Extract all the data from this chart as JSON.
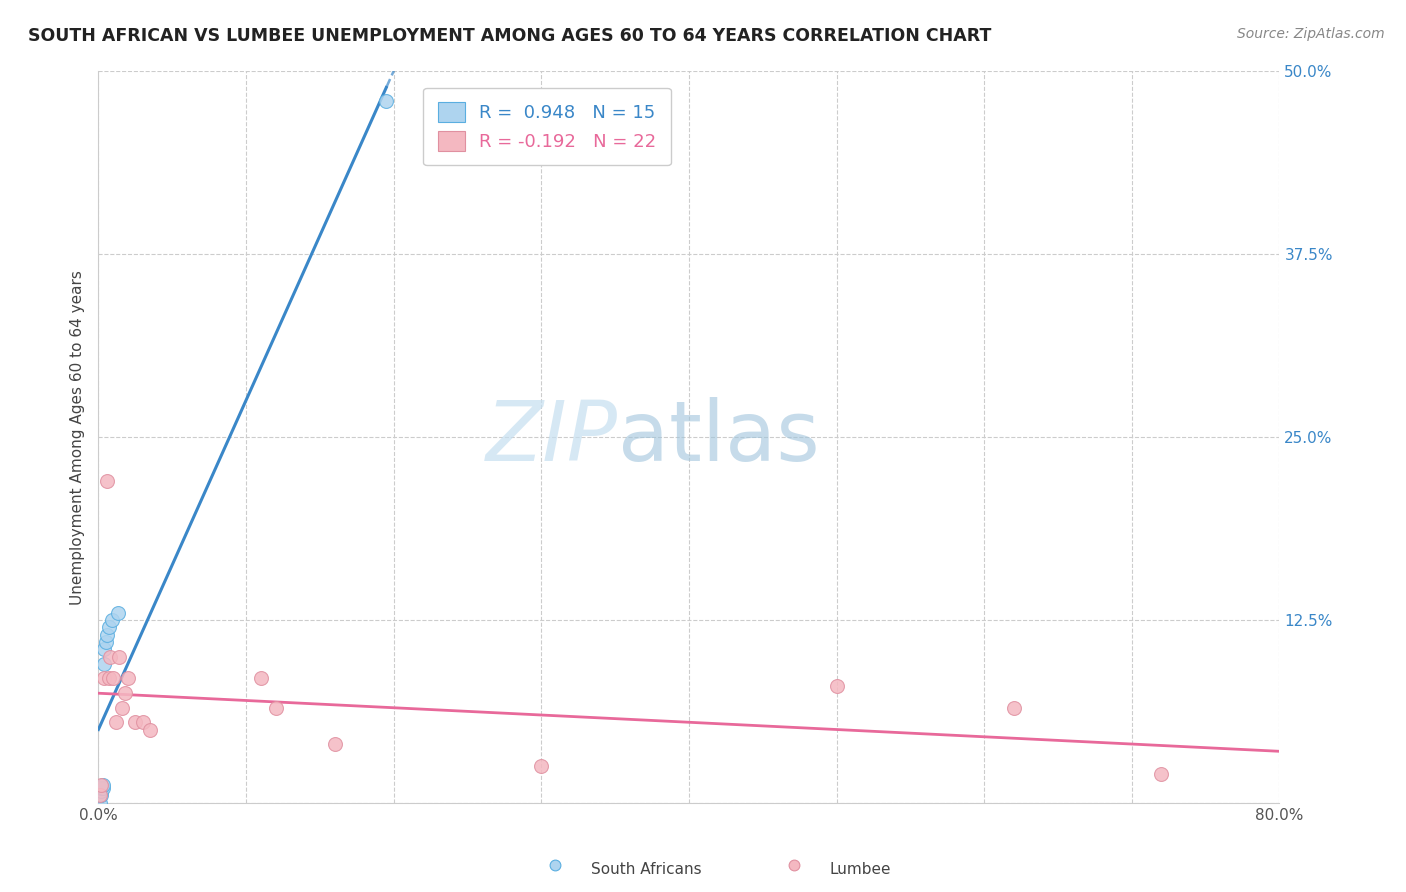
{
  "title": "SOUTH AFRICAN VS LUMBEE UNEMPLOYMENT AMONG AGES 60 TO 64 YEARS CORRELATION CHART",
  "source": "Source: ZipAtlas.com",
  "ylabel": "Unemployment Among Ages 60 to 64 years",
  "xlim": [
    0.0,
    0.8
  ],
  "ylim": [
    0.0,
    0.5
  ],
  "xticks": [
    0.0,
    0.1,
    0.2,
    0.3,
    0.4,
    0.5,
    0.6,
    0.7,
    0.8
  ],
  "xticklabels": [
    "0.0%",
    "",
    "",
    "",
    "",
    "",
    "",
    "",
    "80.0%"
  ],
  "yticks": [
    0.0,
    0.125,
    0.25,
    0.375,
    0.5
  ],
  "yticklabels": [
    "",
    "12.5%",
    "25.0%",
    "37.5%",
    "50.0%"
  ],
  "south_african_x": [
    0.001,
    0.001,
    0.002,
    0.002,
    0.002,
    0.003,
    0.003,
    0.004,
    0.004,
    0.005,
    0.006,
    0.007,
    0.009,
    0.013,
    0.195
  ],
  "south_african_y": [
    0.0,
    0.005,
    0.005,
    0.008,
    0.01,
    0.01,
    0.012,
    0.095,
    0.105,
    0.11,
    0.115,
    0.12,
    0.125,
    0.13,
    0.48
  ],
  "lumbee_x": [
    0.001,
    0.002,
    0.004,
    0.006,
    0.007,
    0.008,
    0.01,
    0.012,
    0.014,
    0.016,
    0.018,
    0.02,
    0.025,
    0.03,
    0.035,
    0.11,
    0.12,
    0.16,
    0.3,
    0.5,
    0.62,
    0.72
  ],
  "lumbee_y": [
    0.005,
    0.012,
    0.085,
    0.22,
    0.085,
    0.1,
    0.085,
    0.055,
    0.1,
    0.065,
    0.075,
    0.085,
    0.055,
    0.055,
    0.05,
    0.085,
    0.065,
    0.04,
    0.025,
    0.08,
    0.065,
    0.02
  ],
  "sa_R": 0.948,
  "sa_N": 15,
  "lumbee_R": -0.192,
  "lumbee_N": 22,
  "sa_color": "#aed4ef",
  "lumbee_color": "#f4b8c1",
  "sa_line_color": "#3a87c8",
  "lumbee_line_color": "#e8699a",
  "sa_edge_color": "#5aaee0",
  "lumbee_edge_color": "#e090a0",
  "watermark_zip": "ZIP",
  "watermark_atlas": "atlas",
  "legend_label_sa": "South Africans",
  "legend_label_lumbee": "Lumbee"
}
